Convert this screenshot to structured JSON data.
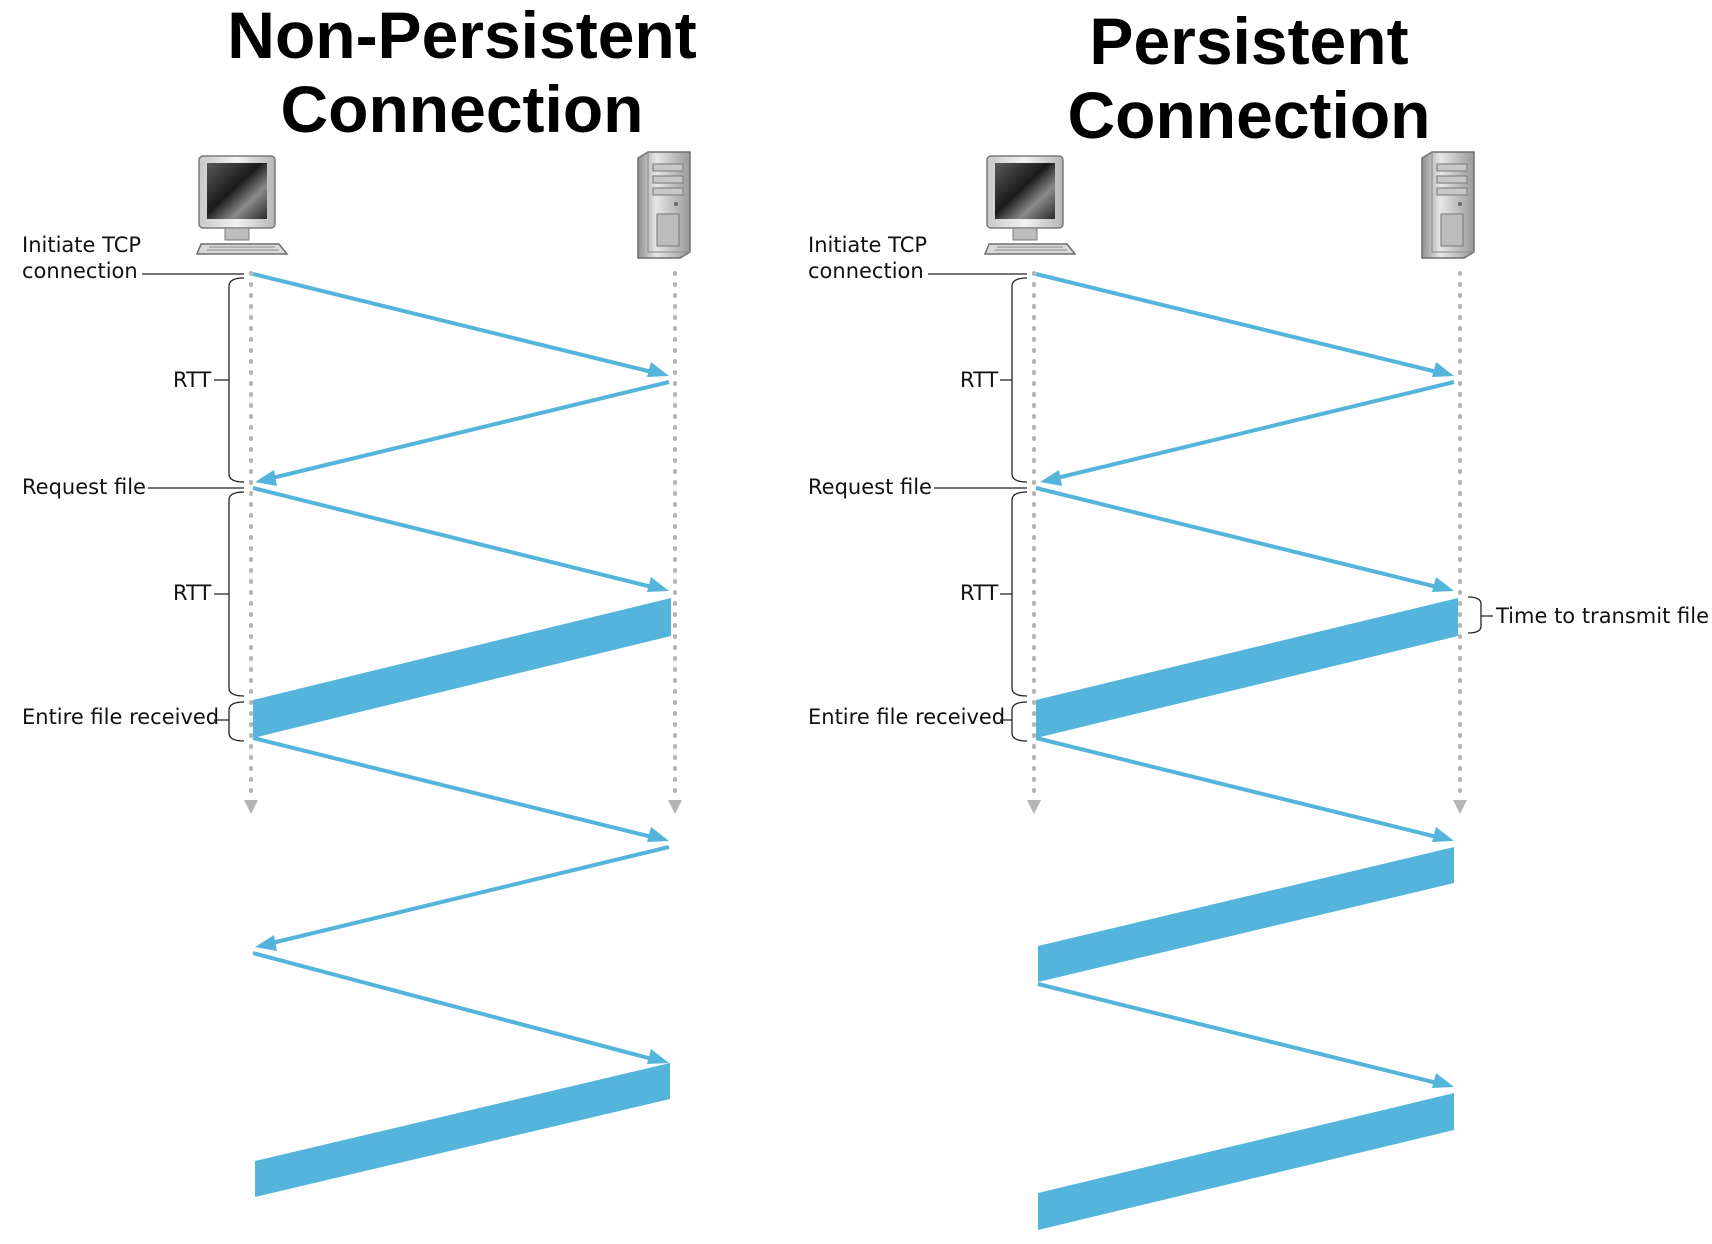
{
  "colors": {
    "accent": "#54b4dc",
    "timeline": "#b5b5b5",
    "text": "#111111"
  },
  "panels": {
    "non_persistent": {
      "title_line1": "Non-Persistent",
      "title_line2": "Connection",
      "labels": {
        "initiate_line1": "Initiate TCP",
        "initiate_line2": "connection",
        "rtt1": "RTT",
        "request": "Request file",
        "rtt2": "RTT",
        "received": "Entire file received"
      }
    },
    "persistent": {
      "title_line1": "Persistent",
      "title_line2": "Connection",
      "labels": {
        "initiate_line1": "Initiate TCP",
        "initiate_line2": "connection",
        "rtt1": "RTT",
        "request": "Request file",
        "rtt2": "RTT",
        "transmit": "Time to transmit file",
        "received": "Entire file received"
      }
    }
  },
  "icons": {
    "client": "desktop-computer-icon",
    "server": "tower-server-icon"
  }
}
